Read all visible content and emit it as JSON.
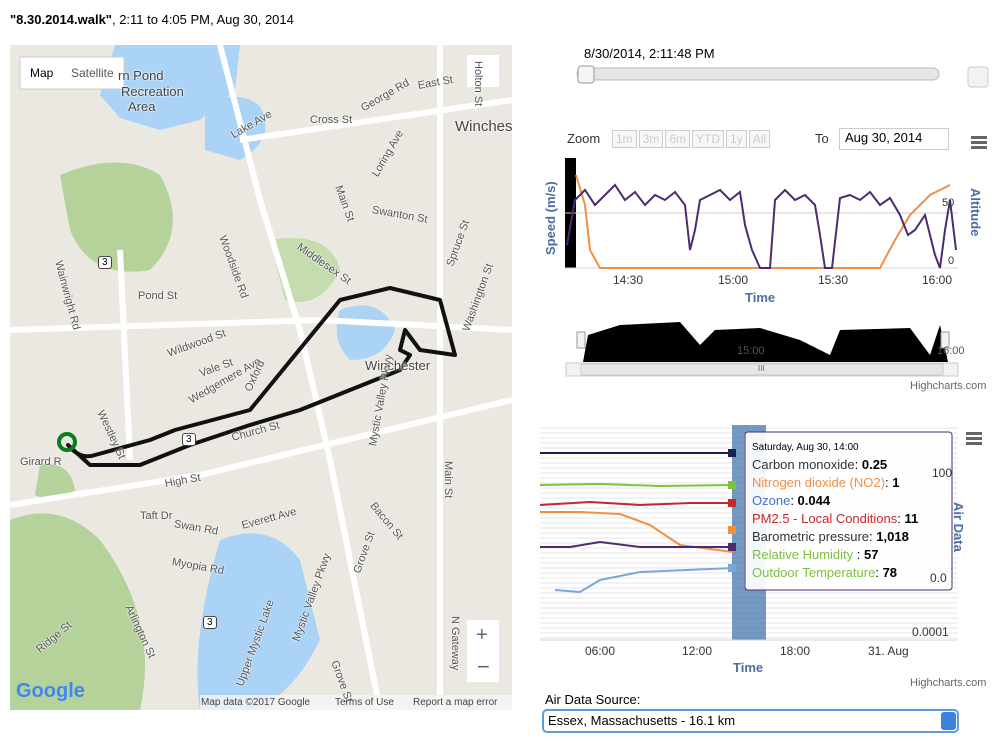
{
  "header": {
    "title": "\"8.30.2014.walk\"",
    "subtitle": ", 2:11 to 4:05 PM, Aug 30, 2014"
  },
  "map": {
    "buttons": [
      "Map",
      "Satellite"
    ],
    "labels": [
      "rn Pond",
      "Recreation",
      "Area",
      "Lake Ave",
      "Cross St",
      "George Rd",
      "East St",
      "Holton St",
      "Winches",
      "Loring Ave",
      "Main St",
      "Swanton St",
      "Spruce St",
      "Woodside Rd",
      "Middlesex St",
      "Pond St",
      "Washington St",
      "Wainwright Rd",
      "Wildwood St",
      "Vale St",
      "Wedgemere Ave",
      "Oxford",
      "Westley St",
      "Church St",
      "Winchester",
      "Girard R",
      "High St",
      "Taft Dr",
      "Swan Rd",
      "Everett Ave",
      "Mystic Valley Pkwy",
      "Main St",
      "Bacon St",
      "Myopia Rd",
      "Grove St",
      "Upper Mystic Lake",
      "Mystic Valley Pkwy",
      "Arlington St",
      "Grove St",
      "N Gateway",
      "Ridge St"
    ],
    "shields": [
      "3",
      "3",
      "3"
    ],
    "logo": "Google",
    "footer": [
      "Map data ©2017 Google",
      "Terms of Use",
      "Report a map error"
    ]
  },
  "slider": {
    "time": "8/30/2014, 2:11:48 PM"
  },
  "speed_chart": {
    "zoom_label": "Zoom",
    "zoom_buttons": [
      "1m",
      "3m",
      "6m",
      "YTD",
      "1y",
      "All"
    ],
    "to_label": "To",
    "to_date": "Aug 30, 2014",
    "y_label": "Speed (m/s)",
    "y2_label": "Altitude",
    "x_label": "Time",
    "xticks": [
      "14:30",
      "15:00",
      "15:30",
      "16:00"
    ],
    "y2ticks": [
      "0",
      "50"
    ],
    "credits": "Highcharts.com"
  },
  "navigator": {
    "xticks": [
      "15:00",
      "16:00"
    ],
    "scroll_grip": "III"
  },
  "air_chart": {
    "y_label": "Air Data",
    "x_label": "Time",
    "xticks": [
      "06:00",
      "12:00",
      "18:00",
      "31. Aug"
    ],
    "yticks": [
      "100",
      "0.0",
      "0.0001"
    ],
    "tooltip": {
      "title": "Saturday, Aug 30, 14:00",
      "rows": [
        {
          "name": "Carbon monoxide",
          "value": "0.25"
        },
        {
          "name": "Nitrogen dioxide (NO2)",
          "value": "1"
        },
        {
          "name": "Ozone",
          "value": "0.044"
        },
        {
          "name": "PM2.5 - Local Conditions",
          "value": "11"
        },
        {
          "name": "Barometric pressure",
          "value": "1,018"
        },
        {
          "name": "Relative Humidity ",
          "value": "57"
        },
        {
          "name": "Outdoor Temperature",
          "value": "78"
        }
      ]
    },
    "credits": "Highcharts.com"
  },
  "source": {
    "label": "Air Data Source:",
    "selected": "Essex, Massachusetts - 16.1 km"
  }
}
